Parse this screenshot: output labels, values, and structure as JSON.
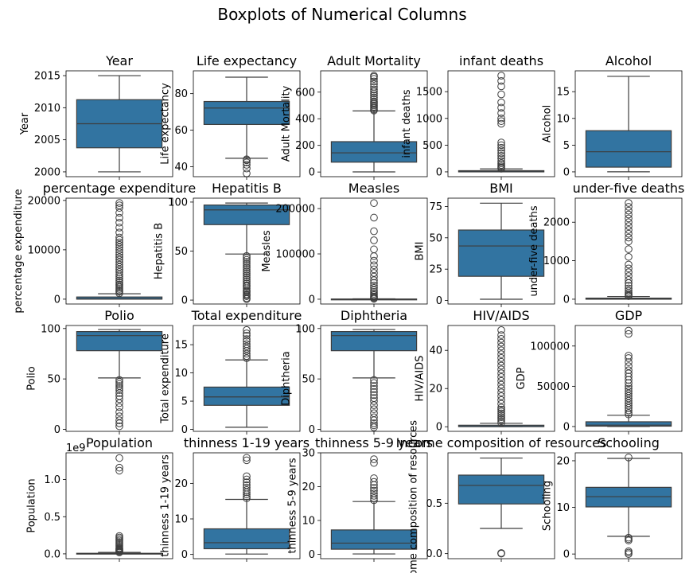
{
  "figure": {
    "title": "Boxplots of Numerical Columns"
  },
  "colors": {
    "box_fill": "#3274a1",
    "box_edge": "#3d3d3d",
    "spine": "#000000",
    "background": "#ffffff"
  },
  "chart_data": [
    {
      "type": "boxplot",
      "title": "Year",
      "ylabel": "Year",
      "ylim": [
        1999.25,
        2015.75
      ],
      "yticks": [
        2000,
        2005,
        2010,
        2015
      ],
      "ytick_labels": [
        "2000",
        "2005",
        "2010",
        "2015"
      ],
      "box": {
        "whislo": 2000,
        "q1": 2003.75,
        "med": 2007.5,
        "q3": 2011.25,
        "whishi": 2015
      },
      "outliers": []
    },
    {
      "type": "boxplot",
      "title": "Life expectancy",
      "ylabel": "Life expectancy",
      "ylim": [
        34.5,
        92.5
      ],
      "yticks": [
        40,
        60,
        80
      ],
      "ytick_labels": [
        "40",
        "60",
        "80"
      ],
      "box": {
        "whislo": 44.6,
        "q1": 63.1,
        "med": 72.1,
        "q3": 75.7,
        "whishi": 89
      },
      "outliers": [
        36.3,
        39,
        41,
        42.3,
        43.5,
        44
      ]
    },
    {
      "type": "boxplot",
      "title": "Adult Mortality",
      "ylabel": "Adult Mortality",
      "ylim": [
        -35,
        760
      ],
      "yticks": [
        0,
        200,
        400,
        600
      ],
      "ytick_labels": [
        "0",
        "200",
        "400",
        "600"
      ],
      "box": {
        "whislo": 1,
        "q1": 74,
        "med": 144,
        "q3": 228,
        "whishi": 459
      },
      "outliers": [
        462,
        470,
        480,
        490,
        500,
        510,
        520,
        530,
        545,
        560,
        575,
        590,
        605,
        620,
        640,
        660,
        680,
        700,
        715,
        723
      ]
    },
    {
      "type": "boxplot",
      "title": "infant deaths",
      "ylabel": "infant deaths",
      "ylim": [
        -90,
        1890
      ],
      "yticks": [
        0,
        500,
        1000,
        1500
      ],
      "ytick_labels": [
        "0",
        "500",
        "1000",
        "1500"
      ],
      "box": {
        "whislo": 0,
        "q1": 0,
        "med": 3,
        "q3": 22,
        "whishi": 55
      },
      "outliers": [
        60,
        80,
        100,
        130,
        160,
        200,
        250,
        300,
        350,
        400,
        450,
        500,
        550,
        900,
        950,
        1000,
        1100,
        1200,
        1300,
        1450,
        1600,
        1700,
        1800
      ]
    },
    {
      "type": "boxplot",
      "title": "Alcohol",
      "ylabel": "Alcohol",
      "ylim": [
        -0.9,
        18.9
      ],
      "yticks": [
        0,
        5,
        10,
        15
      ],
      "ytick_labels": [
        "0",
        "5",
        "10",
        "15"
      ],
      "box": {
        "whislo": 0.01,
        "q1": 0.88,
        "med": 3.76,
        "q3": 7.7,
        "whishi": 17.87
      },
      "outliers": []
    },
    {
      "type": "boxplot",
      "title": "percentage expenditure",
      "ylabel": "percentage expenditure",
      "ylim": [
        -980,
        20460
      ],
      "yticks": [
        0,
        10000,
        20000
      ],
      "ytick_labels": [
        "0",
        "10000",
        "20000"
      ],
      "box": {
        "whislo": 0,
        "q1": 4.7,
        "med": 64.9,
        "q3": 441.5,
        "whishi": 1095
      },
      "outliers": [
        1200,
        1500,
        1800,
        2100,
        2400,
        2700,
        3000,
        3400,
        3800,
        4200,
        4600,
        5000,
        5500,
        6000,
        6500,
        7000,
        7500,
        8000,
        8500,
        9000,
        9500,
        10000,
        10500,
        11000,
        11500,
        12000,
        12500,
        13500,
        14500,
        15500,
        16500,
        17500,
        18500,
        19000,
        19480
      ]
    },
    {
      "type": "boxplot",
      "title": "Hepatitis B",
      "ylabel": "Hepatitis B",
      "ylim": [
        -4,
        104
      ],
      "yticks": [
        0,
        50,
        100
      ],
      "ytick_labels": [
        "0",
        "50",
        "100"
      ],
      "box": {
        "whislo": 47,
        "q1": 77,
        "med": 92,
        "q3": 97,
        "whishi": 99
      },
      "outliers": [
        1,
        2,
        4,
        5,
        6,
        8,
        9,
        10,
        12,
        14,
        15,
        17,
        19,
        21,
        23,
        25,
        27,
        29,
        31,
        33,
        35,
        37,
        39,
        41,
        43,
        45
      ]
    },
    {
      "type": "boxplot",
      "title": "Measles",
      "ylabel": "Measles",
      "ylim": [
        -10600,
        223000
      ],
      "yticks": [
        0,
        100000,
        200000
      ],
      "ytick_labels": [
        "0",
        "100000",
        "200000"
      ],
      "box": {
        "whislo": 0,
        "q1": 0,
        "med": 17,
        "q3": 360,
        "whishi": 900
      },
      "outliers": [
        1000,
        2000,
        4000,
        6000,
        9000,
        12000,
        16000,
        20000,
        25000,
        30000,
        36000,
        42000,
        50000,
        58000,
        66000,
        75000,
        85000,
        95000,
        110000,
        130000,
        150000,
        180000,
        212183
      ]
    },
    {
      "type": "boxplot",
      "title": "BMI",
      "ylabel": "BMI",
      "ylim": [
        -2.8,
        81.6
      ],
      "yticks": [
        0,
        25,
        50,
        75
      ],
      "ytick_labels": [
        "0",
        "25",
        "50",
        "75"
      ],
      "box": {
        "whislo": 1,
        "q1": 19.3,
        "med": 43.5,
        "q3": 56.2,
        "whishi": 77.6
      },
      "outliers": []
    },
    {
      "type": "boxplot",
      "title": "under-five deaths",
      "ylabel": "under-five deaths",
      "ylim": [
        -125,
        2625
      ],
      "yticks": [
        0,
        1000,
        2000
      ],
      "ytick_labels": [
        "0",
        "1000",
        "2000"
      ],
      "box": {
        "whislo": 0,
        "q1": 0,
        "med": 4,
        "q3": 28,
        "whishi": 70
      },
      "outliers": [
        80,
        100,
        130,
        170,
        220,
        280,
        350,
        420,
        500,
        600,
        700,
        800,
        900,
        1100,
        1300,
        1500,
        1600,
        1700,
        1800,
        1900,
        2000,
        2100,
        2200,
        2300,
        2400,
        2500
      ]
    },
    {
      "type": "boxplot",
      "title": "Polio",
      "ylabel": "Polio",
      "ylim": [
        -2,
        103
      ],
      "yticks": [
        0,
        50,
        100
      ],
      "ytick_labels": [
        "0",
        "50",
        "100"
      ],
      "box": {
        "whislo": 51,
        "q1": 78,
        "med": 93,
        "q3": 97,
        "whishi": 99
      },
      "outliers": [
        3,
        6,
        9,
        13,
        17,
        22,
        26,
        30,
        33,
        36,
        39,
        41,
        43,
        45,
        47,
        49
      ]
    },
    {
      "type": "boxplot",
      "title": "Total expenditure",
      "ylabel": "Total expenditure",
      "ylim": [
        -0.35,
        18.4
      ],
      "yticks": [
        0,
        5,
        10,
        15
      ],
      "ytick_labels": [
        "0",
        "5",
        "10",
        "15"
      ],
      "box": {
        "whislo": 0.37,
        "q1": 4.26,
        "med": 5.75,
        "q3": 7.49,
        "whishi": 12.3
      },
      "outliers": [
        12.6,
        13,
        13.4,
        13.9,
        14.3,
        14.7,
        15.1,
        15.6,
        16,
        16.6,
        17,
        17.6
      ]
    },
    {
      "type": "boxplot",
      "title": "Diphtheria",
      "ylabel": "Diphtheria",
      "ylim": [
        -2,
        103
      ],
      "yticks": [
        0,
        50,
        100
      ],
      "ytick_labels": [
        "0",
        "50",
        "100"
      ],
      "box": {
        "whislo": 51,
        "q1": 78,
        "med": 93,
        "q3": 97,
        "whishi": 99
      },
      "outliers": [
        2,
        4,
        6,
        9,
        12,
        16,
        20,
        24,
        28,
        31,
        34,
        37,
        40,
        43,
        46,
        49
      ]
    },
    {
      "type": "boxplot",
      "title": "HIV/AIDS",
      "ylabel": "HIV/AIDS",
      "ylim": [
        -2.4,
        53
      ],
      "yticks": [
        0,
        20,
        40
      ],
      "ytick_labels": [
        "0",
        "20",
        "40"
      ],
      "box": {
        "whislo": 0.1,
        "q1": 0.1,
        "med": 0.1,
        "q3": 0.8,
        "whishi": 1.8
      },
      "outliers": [
        2,
        3,
        4,
        5,
        6,
        7,
        8,
        9,
        10,
        12,
        14,
        16,
        18,
        20,
        22,
        24,
        26,
        28,
        30,
        32,
        34,
        36,
        38,
        40,
        42,
        44,
        46,
        48,
        50.6
      ]
    },
    {
      "type": "boxplot",
      "title": "GDP",
      "ylabel": "GDP",
      "ylim": [
        -5980,
        125500
      ],
      "yticks": [
        0,
        50000,
        100000
      ],
      "ytick_labels": [
        "0",
        "50000",
        "100000"
      ],
      "box": {
        "whislo": 1.7,
        "q1": 463,
        "med": 1766,
        "q3": 5910,
        "whishi": 14000
      },
      "outliers": [
        15000,
        17000,
        20000,
        23000,
        26000,
        29000,
        32000,
        35000,
        38000,
        41000,
        44000,
        47000,
        50000,
        54000,
        58000,
        62000,
        66000,
        70000,
        75000,
        80000,
        85000,
        88000,
        115000,
        119172
      ]
    },
    {
      "type": "boxplot",
      "title": "Population",
      "ylabel": "Population",
      "axis_offset_label": "1e9",
      "ylim": [
        -0.065,
        1.36
      ],
      "yticks": [
        0,
        0.5,
        1.0
      ],
      "ytick_labels": [
        "0.0",
        "0.5",
        "1.0"
      ],
      "box": {
        "whislo": 0,
        "q1": 0.0002,
        "med": 0.0014,
        "q3": 0.0076,
        "whishi": 0.019
      },
      "outliers": [
        0.02,
        0.03,
        0.04,
        0.05,
        0.06,
        0.07,
        0.08,
        0.1,
        0.12,
        0.14,
        0.16,
        0.18,
        0.2,
        0.22,
        0.24,
        1.12,
        1.16,
        1.29
      ]
    },
    {
      "type": "boxplot",
      "title": "thinness  1-19 years",
      "ylabel": "thinness  1-19 years",
      "ylim": [
        -1.2,
        28.6
      ],
      "yticks": [
        0,
        10,
        20
      ],
      "ytick_labels": [
        "0",
        "10",
        "20"
      ],
      "box": {
        "whislo": 0.1,
        "q1": 1.6,
        "med": 3.3,
        "q3": 7.2,
        "whishi": 15.5
      },
      "outliers": [
        15.8,
        16.3,
        16.9,
        17.5,
        18.1,
        18.8,
        19.5,
        20.3,
        21.1,
        22,
        26.5,
        27.2
      ]
    },
    {
      "type": "boxplot",
      "title": "thinness 5-9 years",
      "ylabel": "thinness 5-9 years",
      "ylim": [
        -1.3,
        30
      ],
      "yticks": [
        0,
        10,
        20,
        30
      ],
      "ytick_labels": [
        "0",
        "10",
        "20",
        "30"
      ],
      "box": {
        "whislo": 0.1,
        "q1": 1.5,
        "med": 3.3,
        "q3": 7.2,
        "whishi": 15.6
      },
      "outliers": [
        16,
        16.6,
        17.3,
        18,
        18.8,
        19.6,
        20.5,
        21.4,
        22.5,
        27,
        28.1
      ]
    },
    {
      "type": "boxplot",
      "title": "Income composition of resources",
      "ylabel": "Income composition of resources",
      "ylim": [
        -0.05,
        1.0
      ],
      "yticks": [
        0,
        0.5
      ],
      "ytick_labels": [
        "0.0",
        "0.5"
      ],
      "box": {
        "whislo": 0.25,
        "q1": 0.493,
        "med": 0.677,
        "q3": 0.779,
        "whishi": 0.948
      },
      "outliers": [
        0,
        0.003,
        0.006
      ]
    },
    {
      "type": "boxplot",
      "title": "Schooling",
      "ylabel": "Schooling",
      "ylim": [
        -1.0,
        21.7
      ],
      "yticks": [
        0,
        10,
        20
      ],
      "ytick_labels": [
        "0",
        "10",
        "20"
      ],
      "box": {
        "whislo": 3.8,
        "q1": 10.1,
        "med": 12.3,
        "q3": 14.3,
        "whishi": 20.5
      },
      "outliers": [
        0,
        0.3,
        0.6,
        2.9,
        3.2,
        3.5,
        20.7
      ]
    }
  ]
}
